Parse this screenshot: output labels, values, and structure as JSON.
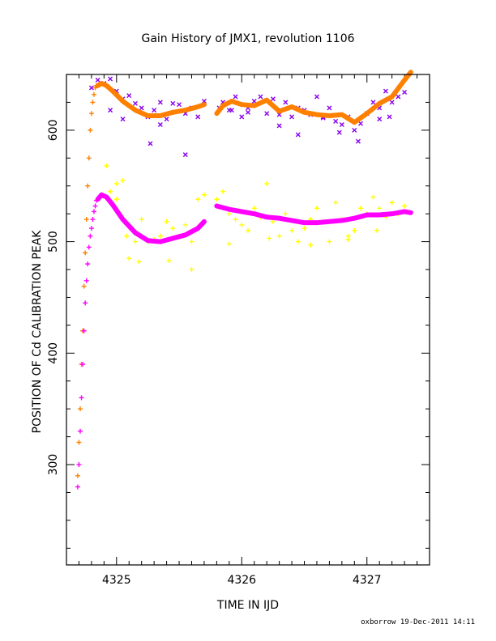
{
  "chart_data": {
    "type": "scatter",
    "title": "Gain History of JMX1, revolution 1106",
    "xlabel": "TIME IN IJD",
    "ylabel": "POSITION OF Cd CALIBRATION PEAK",
    "xlim": [
      4324.6,
      4327.5
    ],
    "ylim": [
      210,
      650
    ],
    "x_ticks": [
      4325,
      4326,
      4327
    ],
    "y_ticks": [
      300,
      400,
      500,
      600
    ],
    "footer": "oxborrow 19-Dec-2011 14:11",
    "colors": {
      "purple": "#8800ee",
      "orange": "#ff8000",
      "magenta": "#ff00ff",
      "yellow": "#ffff00",
      "axis": "#000000"
    },
    "series": [
      {
        "marker": "cross-x",
        "color": "#8800ee",
        "x": [
          4324.8,
          4324.85,
          4324.9,
          4324.95,
          4325.0,
          4325.05,
          4325.1,
          4325.15,
          4325.2,
          4325.25,
          4325.3,
          4325.35,
          4325.4,
          4325.45,
          4325.5,
          4325.55,
          4325.6,
          4325.65,
          4325.7,
          4325.82,
          4325.85,
          4325.9,
          4325.95,
          4326.0,
          4326.05,
          4326.1,
          4326.15,
          4326.2,
          4326.25,
          4326.3,
          4326.35,
          4326.4,
          4326.45,
          4326.5,
          4326.55,
          4326.6,
          4326.65,
          4326.7,
          4326.75,
          4326.8,
          4326.85,
          4326.9,
          4326.95,
          4327.0,
          4327.05,
          4327.1,
          4327.15,
          4327.2,
          4327.25,
          4327.3,
          4324.95,
          4325.05,
          4325.27,
          4325.35,
          4325.55,
          4325.92,
          4326.05,
          4326.3,
          4326.45,
          4326.65,
          4326.78,
          4326.93,
          4327.1,
          4327.18
        ],
        "y": [
          638,
          645,
          642,
          646,
          635,
          628,
          631,
          624,
          620,
          612,
          618,
          625,
          610,
          624,
          623,
          615,
          620,
          612,
          626,
          620,
          625,
          618,
          630,
          612,
          620,
          626,
          630,
          615,
          628,
          614,
          625,
          612,
          620,
          618,
          614,
          630,
          611,
          620,
          608,
          605,
          612,
          600,
          606,
          615,
          625,
          610,
          635,
          625,
          630,
          634,
          618,
          610,
          588,
          605,
          578,
          618,
          616,
          604,
          596,
          612,
          598,
          590,
          620,
          612
        ]
      },
      {
        "marker": "plus",
        "color": "#ff8000",
        "x": [
          4324.69,
          4324.7,
          4324.71,
          4324.72,
          4324.73,
          4324.74,
          4324.75,
          4324.76,
          4324.77,
          4324.78,
          4324.79,
          4324.8,
          4324.81,
          4324.82,
          4324.83,
          4324.84
        ],
        "y": [
          290,
          320,
          350,
          390,
          420,
          460,
          490,
          520,
          550,
          575,
          600,
          615,
          625,
          632,
          638,
          640
        ]
      },
      {
        "marker": "thick-line",
        "color": "#ff8000",
        "x": [
          4324.85,
          4324.88,
          4324.92,
          4324.97,
          4325.05,
          4325.15,
          4325.25,
          4325.35,
          4325.45,
          4325.55,
          4325.65,
          4325.7
        ],
        "y": [
          640,
          642,
          640,
          635,
          626,
          618,
          613,
          613,
          616,
          618,
          621,
          623
        ]
      },
      {
        "marker": "thick-line",
        "color": "#ff8000",
        "x": [
          4325.8,
          4325.85,
          4325.92,
          4326.0,
          4326.1,
          4326.2,
          4326.3,
          4326.4,
          4326.5,
          4326.6,
          4326.7,
          4326.8,
          4326.9,
          4327.0,
          4327.1,
          4327.2,
          4327.3,
          4327.35
        ],
        "y": [
          615,
          622,
          626,
          623,
          622,
          627,
          617,
          621,
          616,
          614,
          613,
          614,
          607,
          615,
          624,
          630,
          645,
          652
        ]
      },
      {
        "marker": "plus",
        "color": "#ffff00",
        "x": [
          4324.95,
          4325.0,
          4325.05,
          4325.1,
          4325.15,
          4325.2,
          4325.25,
          4325.3,
          4325.35,
          4325.4,
          4325.45,
          4325.5,
          4325.55,
          4325.6,
          4325.65,
          4325.7,
          4325.8,
          4325.85,
          4325.9,
          4325.95,
          4326.0,
          4326.05,
          4326.1,
          4326.15,
          4326.2,
          4326.25,
          4326.3,
          4326.35,
          4326.4,
          4326.45,
          4326.5,
          4326.55,
          4326.6,
          4326.65,
          4326.7,
          4326.75,
          4326.8,
          4326.85,
          4326.9,
          4326.95,
          4327.0,
          4327.05,
          4327.1,
          4327.15,
          4327.2,
          4327.25,
          4327.3,
          4324.92,
          4325.0,
          4325.08,
          4325.18,
          4325.42,
          4325.6,
          4325.9,
          4326.22,
          4326.55,
          4326.85,
          4327.08
        ],
        "y": [
          545,
          552,
          555,
          485,
          500,
          520,
          500,
          502,
          505,
          518,
          512,
          505,
          515,
          500,
          538,
          542,
          538,
          545,
          525,
          520,
          515,
          510,
          530,
          522,
          552,
          518,
          505,
          525,
          510,
          500,
          512,
          520,
          530,
          518,
          500,
          535,
          520,
          505,
          510,
          530,
          525,
          540,
          530,
          522,
          535,
          525,
          532,
          568,
          538,
          505,
          482,
          483,
          475,
          498,
          503,
          497,
          502,
          510
        ]
      },
      {
        "marker": "plus",
        "color": "#ff00ff",
        "x": [
          4324.69,
          4324.7,
          4324.71,
          4324.72,
          4324.73,
          4324.74,
          4324.75,
          4324.76,
          4324.77,
          4324.78,
          4324.79,
          4324.8,
          4324.81,
          4324.82,
          4324.83,
          4324.84
        ],
        "y": [
          280,
          300,
          330,
          360,
          390,
          420,
          445,
          465,
          480,
          495,
          505,
          512,
          520,
          527,
          532,
          537
        ]
      },
      {
        "marker": "thick-line",
        "color": "#ff00ff",
        "x": [
          4324.85,
          4324.88,
          4324.92,
          4324.97,
          4325.05,
          4325.15,
          4325.25,
          4325.35,
          4325.45,
          4325.55,
          4325.65,
          4325.7
        ],
        "y": [
          538,
          542,
          540,
          533,
          520,
          508,
          501,
          500,
          503,
          506,
          512,
          518
        ]
      },
      {
        "marker": "thick-line",
        "color": "#ff00ff",
        "x": [
          4325.8,
          4325.9,
          4326.0,
          4326.1,
          4326.2,
          4326.3,
          4326.4,
          4326.5,
          4326.6,
          4326.7,
          4326.8,
          4326.9,
          4327.0,
          4327.1,
          4327.2,
          4327.3,
          4327.35
        ],
        "y": [
          532,
          529,
          527,
          525,
          522,
          521,
          519,
          517,
          517,
          518,
          519,
          521,
          524,
          524,
          525,
          527,
          526
        ]
      }
    ]
  }
}
